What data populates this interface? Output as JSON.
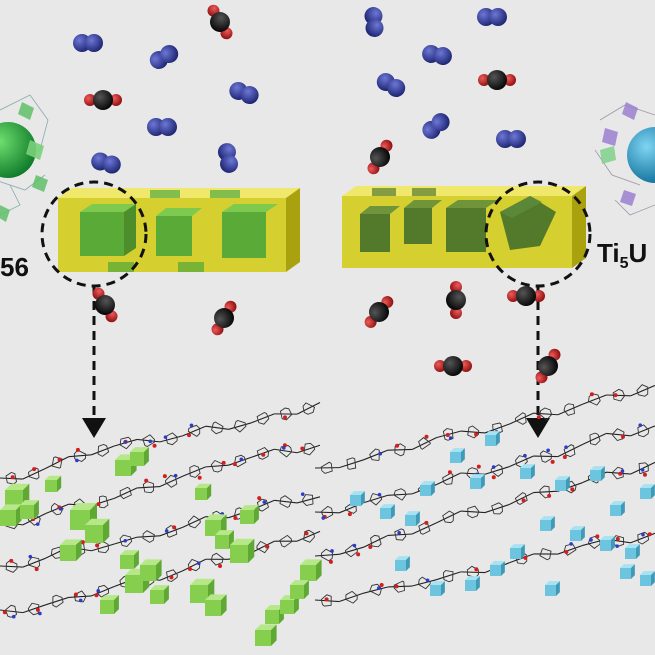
{
  "labels": {
    "left_material": "56",
    "right_prefix": "Ti",
    "right_subscript": "5",
    "right_suffix": "U"
  },
  "colors": {
    "background": "#e8e8e8",
    "membrane": "#d4cc20",
    "filler_left": "#3aa03a",
    "filler_right": "#3c6b2a",
    "n2_molecule": "#2b3590",
    "co2_carbon": "#141414",
    "co2_oxygen": "#c81e1e",
    "green_cube": "#86cf4e",
    "cyan_cube": "#6cc4de"
  },
  "icons": [
    "n2-molecule-icon",
    "co2-molecule-icon",
    "polymer-chain-icon",
    "filler-cube-icon",
    "arrow-down-icon"
  ]
}
